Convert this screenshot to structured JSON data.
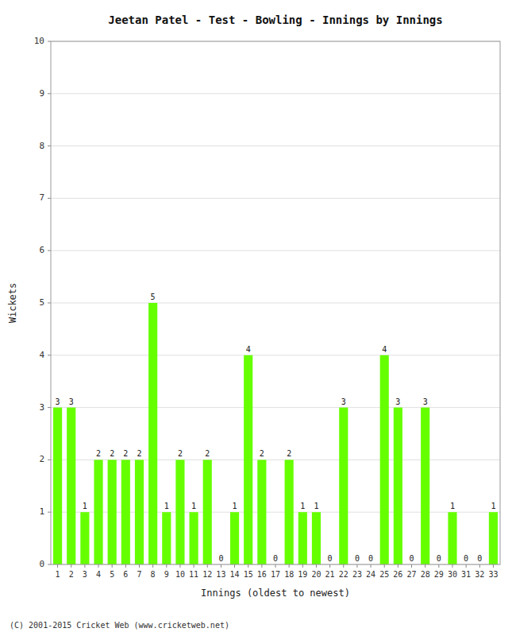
{
  "chart_data": {
    "type": "bar",
    "title": "Jeetan Patel - Test - Bowling - Innings by Innings",
    "x_label": "Innings (oldest to newest)",
    "y_label": "Wickets",
    "categories": [
      "1",
      "2",
      "3",
      "4",
      "5",
      "6",
      "7",
      "8",
      "9",
      "10",
      "11",
      "12",
      "13",
      "14",
      "15",
      "16",
      "17",
      "18",
      "19",
      "20",
      "21",
      "22",
      "23",
      "24",
      "25",
      "26",
      "27",
      "28",
      "29",
      "30",
      "31",
      "32",
      "33"
    ],
    "values": [
      3,
      3,
      1,
      2,
      2,
      2,
      2,
      5,
      1,
      2,
      1,
      2,
      0,
      1,
      4,
      2,
      0,
      2,
      1,
      1,
      0,
      3,
      0,
      0,
      4,
      3,
      0,
      3,
      0,
      1,
      0,
      0,
      1
    ],
    "color": "#66ff00",
    "ylim": [
      0,
      10
    ],
    "yticks": [
      0,
      1,
      2,
      3,
      4,
      5,
      6,
      7,
      8,
      9,
      10
    ],
    "grid": true,
    "data_labels": true,
    "annotations": [
      "(C) 2001-2015 Cricket Web (www.cricketweb.net)"
    ]
  }
}
